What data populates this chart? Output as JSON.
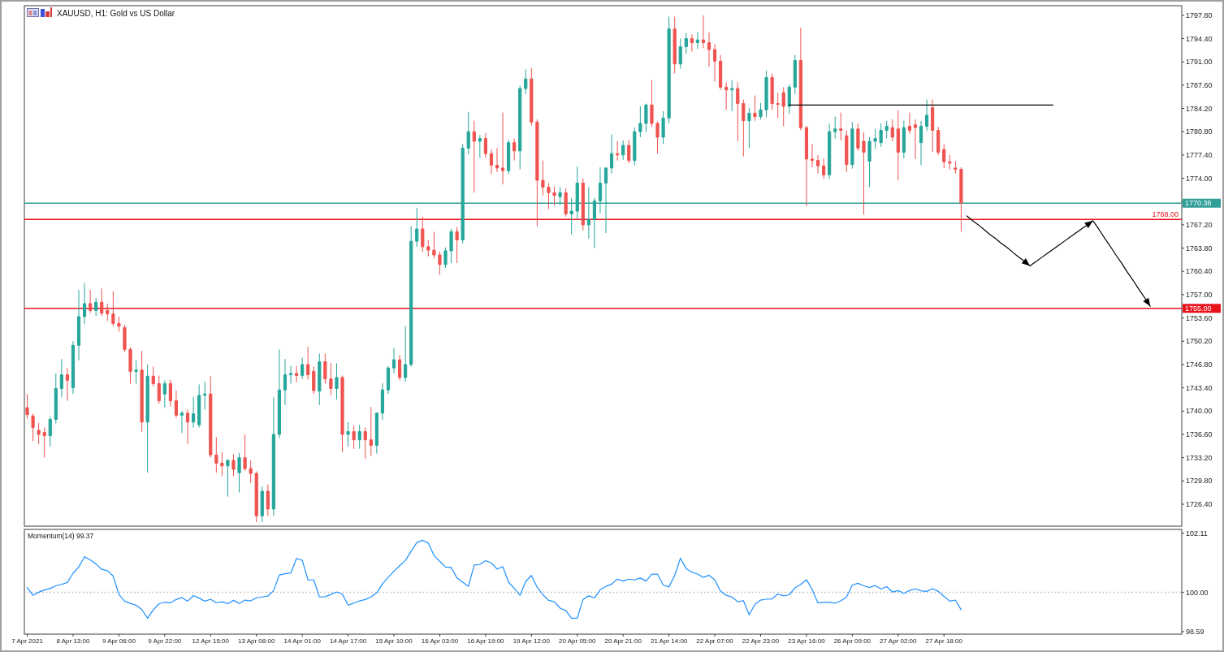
{
  "chart_data": [
    {
      "type": "candlestick",
      "title": "XAUUSD, H1: Gold vs US Dollar",
      "categories": [
        null,
        null,
        null,
        null,
        null,
        null,
        null,
        null,
        null,
        null,
        null,
        null,
        null,
        null,
        null,
        null,
        null,
        null,
        null,
        null,
        null,
        null,
        null,
        null,
        null,
        null,
        null,
        null,
        null,
        null,
        null,
        null,
        null,
        null,
        null,
        null,
        null,
        null,
        null,
        null,
        null,
        null,
        null,
        null,
        null,
        null,
        null,
        null,
        null,
        null,
        null,
        null,
        null,
        null,
        null,
        null,
        null,
        null,
        null,
        null,
        null,
        null,
        null,
        null,
        null,
        null,
        null,
        null,
        null,
        null,
        null,
        null,
        null,
        null,
        null,
        null,
        null,
        null,
        null,
        null,
        null,
        null,
        null,
        null,
        null,
        null,
        null,
        null,
        null,
        null,
        null,
        null,
        null,
        null,
        null,
        null,
        null,
        null,
        null,
        null,
        null,
        null,
        null,
        null,
        null,
        null,
        null,
        null,
        null,
        null,
        null,
        null,
        null,
        null,
        null,
        null,
        null,
        null,
        null,
        null,
        null,
        null,
        null,
        null,
        null,
        null,
        null,
        null,
        null,
        null,
        null,
        null,
        null,
        null,
        null,
        null,
        null,
        null,
        null,
        null,
        null,
        null,
        null,
        null,
        null,
        null,
        null,
        null,
        null,
        null,
        null,
        null,
        null,
        null,
        null,
        null,
        null,
        null,
        null,
        null,
        null,
        null,
        null,
        null,
        null,
        null,
        null,
        null,
        null,
        null,
        null,
        null,
        null,
        null,
        null,
        null,
        null,
        null,
        null,
        null,
        null,
        null,
        null,
        null,
        null,
        null,
        null,
        null,
        null,
        null,
        null,
        null,
        null,
        null,
        null,
        null,
        null,
        null,
        null,
        null,
        null,
        null
      ],
      "ohlc": [
        [
          1740.5,
          1742.5,
          1738.9,
          1739.5
        ],
        [
          1739.3,
          1739.6,
          1735.6,
          1737.6
        ],
        [
          1737.2,
          1738.3,
          1735.2,
          1736.6
        ],
        [
          1736.9,
          1737.6,
          1733.2,
          1736.4
        ],
        [
          1736.4,
          1739.2,
          1734.8,
          1738.8
        ],
        [
          1738.8,
          1745.5,
          1738.2,
          1743.3
        ],
        [
          1743.3,
          1747.6,
          1742.0,
          1745.3
        ],
        [
          1745.3,
          1746.3,
          1741.5,
          1744.5
        ],
        [
          1743.4,
          1750.2,
          1742.5,
          1749.6
        ],
        [
          1749.6,
          1757.7,
          1747.4,
          1753.8
        ],
        [
          1753.8,
          1758.7,
          1752.7,
          1755.7
        ],
        [
          1755.7,
          1757.7,
          1754.3,
          1754.7
        ],
        [
          1754.7,
          1756.5,
          1753.9,
          1755.9
        ],
        [
          1755.9,
          1757.9,
          1753.9,
          1754.3
        ],
        [
          1754.7,
          1755.7,
          1753.2,
          1754.2
        ],
        [
          1754.2,
          1757.5,
          1752.4,
          1752.8
        ],
        [
          1752.8,
          1753.8,
          1751.6,
          1752.4
        ],
        [
          1752.2,
          1752.6,
          1748.6,
          1749.0
        ],
        [
          1749.0,
          1749.3,
          1744.0,
          1745.8
        ],
        [
          1745.8,
          1747.4,
          1744.0,
          1746.0
        ],
        [
          1746.0,
          1748.8,
          1737.0,
          1738.4
        ],
        [
          1738.4,
          1746.8,
          1731.0,
          1745.1
        ],
        [
          1745.1,
          1746.5,
          1743.6,
          1744.0
        ],
        [
          1744.0,
          1745.2,
          1741.1,
          1741.5
        ],
        [
          1742.5,
          1744.5,
          1740.5,
          1744.0
        ],
        [
          1744.0,
          1744.6,
          1740.7,
          1741.5
        ],
        [
          1741.5,
          1743.0,
          1739.0,
          1739.4
        ],
        [
          1739.4,
          1740.0,
          1736.8,
          1739.7
        ],
        [
          1739.7,
          1740.2,
          1735.2,
          1738.4
        ],
        [
          1738.4,
          1742.1,
          1737.6,
          1739.6
        ],
        [
          1738.0,
          1743.9,
          1737.6,
          1742.3
        ],
        [
          1742.3,
          1744.3,
          1740.2,
          1742.5
        ],
        [
          1742.5,
          1745.1,
          1733.2,
          1733.6
        ],
        [
          1733.6,
          1736.2,
          1731.0,
          1732.4
        ],
        [
          1732.4,
          1734.0,
          1730.5,
          1732.0
        ],
        [
          1732.0,
          1733.0,
          1727.5,
          1732.8
        ],
        [
          1732.8,
          1733.7,
          1730.5,
          1731.5
        ],
        [
          1731.0,
          1733.9,
          1728.1,
          1733.2
        ],
        [
          1733.2,
          1736.6,
          1731.3,
          1731.6
        ],
        [
          1731.6,
          1732.8,
          1729.5,
          1730.9
        ],
        [
          1730.9,
          1731.2,
          1723.8,
          1724.7
        ],
        [
          1724.7,
          1729.0,
          1723.8,
          1728.3
        ],
        [
          1728.3,
          1729.3,
          1724.7,
          1725.7
        ],
        [
          1725.7,
          1742.0,
          1724.7,
          1736.6
        ],
        [
          1736.6,
          1749.0,
          1736.0,
          1743.1
        ],
        [
          1743.1,
          1747.6,
          1740.9,
          1745.3
        ],
        [
          1745.3,
          1746.6,
          1744.0,
          1745.5
        ],
        [
          1745.5,
          1746.6,
          1744.2,
          1745.2
        ],
        [
          1745.2,
          1747.8,
          1744.7,
          1746.8
        ],
        [
          1746.8,
          1749.4,
          1744.6,
          1745.3
        ],
        [
          1745.8,
          1746.5,
          1742.5,
          1743.0
        ],
        [
          1742.9,
          1748.4,
          1740.9,
          1747.2
        ],
        [
          1747.2,
          1748.4,
          1744.0,
          1744.7
        ],
        [
          1744.7,
          1747.0,
          1742.3,
          1743.3
        ],
        [
          1743.3,
          1747.0,
          1741.7,
          1744.9
        ],
        [
          1744.9,
          1745.2,
          1734.0,
          1736.6
        ],
        [
          1736.6,
          1738.4,
          1734.8,
          1737.0
        ],
        [
          1737.0,
          1737.9,
          1734.5,
          1735.8
        ],
        [
          1735.8,
          1738.0,
          1734.5,
          1737.0
        ],
        [
          1737.0,
          1737.6,
          1733.0,
          1735.8
        ],
        [
          1735.8,
          1740.6,
          1733.5,
          1735.0
        ],
        [
          1735.0,
          1739.8,
          1733.8,
          1739.7
        ],
        [
          1739.7,
          1744.1,
          1738.7,
          1743.1
        ],
        [
          1743.1,
          1746.6,
          1742.5,
          1746.3
        ],
        [
          1746.3,
          1749.2,
          1745.5,
          1747.5
        ],
        [
          1747.5,
          1748.2,
          1744.5,
          1744.9
        ],
        [
          1744.9,
          1752.4,
          1744.3,
          1746.8
        ],
        [
          1746.8,
          1767.0,
          1746.5,
          1764.8
        ],
        [
          1764.8,
          1769.7,
          1764.0,
          1766.6
        ],
        [
          1766.6,
          1768.4,
          1763.2,
          1764.0
        ],
        [
          1764.0,
          1765.0,
          1762.6,
          1763.5
        ],
        [
          1763.5,
          1766.2,
          1762.3,
          1762.8
        ],
        [
          1762.8,
          1763.3,
          1759.9,
          1761.4
        ],
        [
          1761.4,
          1763.9,
          1760.9,
          1763.4
        ],
        [
          1763.4,
          1766.6,
          1761.6,
          1766.2
        ],
        [
          1766.2,
          1766.9,
          1761.6,
          1765.0
        ],
        [
          1765.0,
          1779.0,
          1764.5,
          1778.4
        ],
        [
          1778.4,
          1783.7,
          1777.5,
          1780.8
        ],
        [
          1780.8,
          1782.4,
          1771.9,
          1779.4
        ],
        [
          1779.4,
          1780.3,
          1777.0,
          1779.8
        ],
        [
          1779.8,
          1780.6,
          1777.0,
          1777.6
        ],
        [
          1777.6,
          1778.2,
          1774.6,
          1775.9
        ],
        [
          1775.9,
          1778.4,
          1774.9,
          1775.5
        ],
        [
          1775.5,
          1783.6,
          1773.1,
          1775.1
        ],
        [
          1775.1,
          1779.6,
          1774.6,
          1779.2
        ],
        [
          1779.2,
          1779.8,
          1776.6,
          1778.0
        ],
        [
          1778.0,
          1787.5,
          1775.3,
          1787.1
        ],
        [
          1787.1,
          1789.9,
          1786.3,
          1788.5
        ],
        [
          1788.5,
          1790.1,
          1781.7,
          1782.2
        ],
        [
          1782.2,
          1782.6,
          1767.0,
          1773.7
        ],
        [
          1773.7,
          1776.6,
          1771.5,
          1772.7
        ],
        [
          1772.7,
          1773.3,
          1769.5,
          1771.9
        ],
        [
          1771.9,
          1772.8,
          1770.0,
          1771.5
        ],
        [
          1771.3,
          1772.7,
          1770.1,
          1771.9
        ],
        [
          1771.9,
          1772.5,
          1768.4,
          1768.8
        ],
        [
          1768.8,
          1771.1,
          1765.8,
          1769.2
        ],
        [
          1769.2,
          1775.7,
          1768.0,
          1773.3
        ],
        [
          1773.3,
          1774.0,
          1766.4,
          1767.2
        ],
        [
          1767.2,
          1772.7,
          1765.2,
          1768.0
        ],
        [
          1768.0,
          1771.1,
          1763.8,
          1770.7
        ],
        [
          1770.7,
          1775.6,
          1768.9,
          1773.3
        ],
        [
          1773.3,
          1775.6,
          1766.0,
          1775.5
        ],
        [
          1775.5,
          1780.4,
          1774.7,
          1777.6
        ],
        [
          1777.6,
          1779.4,
          1776.6,
          1777.4
        ],
        [
          1777.4,
          1779.5,
          1776.7,
          1778.8
        ],
        [
          1778.8,
          1779.6,
          1776.2,
          1776.6
        ],
        [
          1776.6,
          1781.4,
          1775.9,
          1780.8
        ],
        [
          1780.8,
          1784.5,
          1780.0,
          1782.0
        ],
        [
          1782.0,
          1784.9,
          1780.7,
          1784.7
        ],
        [
          1784.7,
          1788.3,
          1781.5,
          1782.0
        ],
        [
          1782.0,
          1782.3,
          1777.6,
          1780.0
        ],
        [
          1780.0,
          1783.8,
          1779.0,
          1782.8
        ],
        [
          1782.8,
          1797.6,
          1782.0,
          1795.8
        ],
        [
          1795.8,
          1797.6,
          1789.3,
          1790.7
        ],
        [
          1790.7,
          1794.4,
          1790.0,
          1793.2
        ],
        [
          1793.2,
          1795.2,
          1792.2,
          1794.4
        ],
        [
          1794.4,
          1795.0,
          1792.5,
          1793.8
        ],
        [
          1793.8,
          1795.4,
          1792.9,
          1794.2
        ],
        [
          1794.2,
          1797.8,
          1793.0,
          1793.8
        ],
        [
          1793.8,
          1795.3,
          1790.3,
          1792.8
        ],
        [
          1792.8,
          1793.6,
          1788.1,
          1791.1
        ],
        [
          1791.1,
          1792.0,
          1786.9,
          1787.3
        ],
        [
          1787.3,
          1788.0,
          1784.0,
          1786.9
        ],
        [
          1786.9,
          1788.3,
          1783.8,
          1787.1
        ],
        [
          1787.1,
          1788.0,
          1779.4,
          1784.9
        ],
        [
          1784.9,
          1785.5,
          1777.2,
          1782.4
        ],
        [
          1782.4,
          1784.3,
          1778.4,
          1783.5
        ],
        [
          1783.5,
          1786.1,
          1782.4,
          1783.0
        ],
        [
          1783.0,
          1785.0,
          1782.6,
          1784.0
        ],
        [
          1784.0,
          1789.7,
          1782.9,
          1788.7
        ],
        [
          1788.7,
          1789.3,
          1784.0,
          1784.9
        ],
        [
          1784.9,
          1786.5,
          1782.8,
          1784.8
        ],
        [
          1786.5,
          1787.3,
          1781.6,
          1784.5
        ],
        [
          1784.5,
          1787.7,
          1783.4,
          1787.3
        ],
        [
          1787.3,
          1792.0,
          1786.3,
          1791.2
        ],
        [
          1791.2,
          1796.0,
          1781.0,
          1781.4
        ],
        [
          1781.4,
          1781.6,
          1769.9,
          1776.8
        ],
        [
          1776.8,
          1779.0,
          1775.6,
          1776.6
        ],
        [
          1776.6,
          1777.4,
          1774.7,
          1775.8
        ],
        [
          1775.8,
          1776.9,
          1773.9,
          1774.5
        ],
        [
          1774.5,
          1782.0,
          1773.9,
          1780.8
        ],
        [
          1780.8,
          1783.0,
          1779.8,
          1781.2
        ],
        [
          1781.2,
          1783.6,
          1779.5,
          1781.0
        ],
        [
          1780.2,
          1781.0,
          1774.9,
          1776.0
        ],
        [
          1776.0,
          1782.2,
          1775.4,
          1781.2
        ],
        [
          1781.2,
          1782.0,
          1778.0,
          1778.4
        ],
        [
          1779.4,
          1780.7,
          1768.7,
          1777.8
        ],
        [
          1776.5,
          1780.0,
          1772.7,
          1779.4
        ],
        [
          1779.4,
          1781.2,
          1778.3,
          1779.8
        ],
        [
          1779.2,
          1782.0,
          1778.6,
          1781.0
        ],
        [
          1781.0,
          1782.4,
          1779.8,
          1781.6
        ],
        [
          1781.4,
          1782.6,
          1779.4,
          1780.0
        ],
        [
          1781.2,
          1783.9,
          1773.7,
          1777.8
        ],
        [
          1777.8,
          1782.4,
          1776.9,
          1781.4
        ],
        [
          1781.6,
          1783.6,
          1780.5,
          1781.0
        ],
        [
          1781.8,
          1782.6,
          1776.8,
          1781.4
        ],
        [
          1779.2,
          1782.4,
          1775.9,
          1781.6
        ],
        [
          1781.6,
          1785.5,
          1780.9,
          1783.2
        ],
        [
          1784.3,
          1785.5,
          1777.8,
          1781.0
        ],
        [
          1781.0,
          1781.5,
          1777.4,
          1777.8
        ],
        [
          1778.2,
          1779.0,
          1775.5,
          1776.4
        ],
        [
          1776.4,
          1777.4,
          1775.3,
          1776.2
        ],
        [
          1775.5,
          1776.5,
          1774.7,
          1775.3
        ],
        [
          1775.3,
          1775.6,
          1766.2,
          1770.4
        ],
        null,
        null,
        null,
        null,
        null,
        null,
        null,
        null,
        null,
        null,
        null,
        null,
        null,
        null,
        null,
        null,
        null,
        null,
        null,
        null,
        null,
        null,
        null,
        null,
        null,
        null,
        null,
        null,
        null,
        null,
        null,
        null,
        null,
        null,
        null,
        null,
        null,
        null
      ],
      "colors": [
        "#ef5350",
        "#ef5350",
        "#ef5350",
        "#ef5350",
        "#26a69a",
        "#26a69a",
        "#26a69a",
        "#ef5350",
        "#26a69a",
        "#26a69a",
        "#26a69a",
        "#ef5350",
        "#26a69a",
        "#ef5350",
        "#ef5350",
        "#ef5350",
        "#ef5350",
        "#ef5350",
        "#ef5350",
        "#26a69a",
        "#ef5350",
        "#26a69a",
        "#ef5350",
        "#ef5350",
        "#26a69a",
        "#ef5350",
        "#ef5350",
        "#26a69a",
        "#ef5350",
        "#26a69a",
        "#26a69a",
        "#26a69a",
        "#ef5350",
        "#ef5350",
        "#ef5350",
        "#26a69a",
        "#ef5350",
        "#26a69a",
        "#ef5350",
        "#ef5350",
        "#ef5350",
        "#26a69a",
        "#ef5350",
        "#26a69a",
        "#26a69a",
        "#26a69a",
        "#26a69a",
        "#ef5350",
        "#26a69a",
        "#ef5350",
        "#ef5350",
        "#26a69a",
        "#ef5350",
        "#ef5350",
        "#26a69a",
        "#ef5350",
        "#26a69a",
        "#ef5350",
        "#26a69a",
        "#ef5350",
        "#ef5350",
        "#26a69a",
        "#26a69a",
        "#26a69a",
        "#26a69a",
        "#ef5350",
        "#26a69a",
        "#26a69a",
        "#26a69a",
        "#ef5350",
        "#ef5350",
        "#ef5350",
        "#ef5350",
        "#26a69a",
        "#26a69a",
        "#ef5350",
        "#26a69a",
        "#26a69a",
        "#ef5350",
        "#26a69a",
        "#ef5350",
        "#ef5350",
        "#ef5350",
        "#ef5350",
        "#26a69a",
        "#ef5350",
        "#26a69a",
        "#26a69a",
        "#ef5350",
        "#ef5350",
        "#ef5350",
        "#ef5350",
        "#ef5350",
        "#26a69a",
        "#ef5350",
        "#26a69a",
        "#26a69a",
        "#ef5350",
        "#26a69a",
        "#26a69a",
        "#26a69a",
        "#26a69a",
        "#26a69a",
        "#ef5350",
        "#26a69a",
        "#ef5350",
        "#26a69a",
        "#26a69a",
        "#26a69a",
        "#ef5350",
        "#ef5350",
        "#26a69a",
        "#26a69a",
        "#ef5350",
        "#26a69a",
        "#26a69a",
        "#ef5350",
        "#26a69a",
        "#ef5350",
        "#ef5350",
        "#ef5350",
        "#ef5350",
        "#ef5350",
        "#26a69a",
        "#ef5350",
        "#ef5350",
        "#26a69a",
        "#ef5350",
        "#26a69a",
        "#26a69a",
        "#ef5350",
        "#ef5350",
        "#ef5350",
        "#26a69a",
        "#26a69a",
        "#ef5350",
        "#ef5350",
        "#ef5350",
        "#ef5350",
        "#ef5350",
        "#26a69a",
        "#26a69a",
        "#ef5350",
        "#ef5350",
        "#26a69a",
        "#ef5350",
        "#ef5350",
        "#26a69a",
        "#26a69a",
        "#26a69a",
        "#26a69a",
        "#ef5350",
        "#ef5350",
        "#26a69a",
        "#ef5350",
        "#ef5350",
        "#26a69a",
        "#26a69a",
        "#ef5350",
        "#ef5350",
        "#ef5350",
        "#ef5350",
        "#ef5350",
        "#ef5350",
        null,
        null,
        null,
        null,
        null,
        null,
        null,
        null,
        null,
        null,
        null,
        null,
        null,
        null,
        null,
        null,
        null,
        null,
        null,
        null,
        null,
        null,
        null,
        null,
        null,
        null,
        null,
        null,
        null,
        null,
        null,
        null,
        null,
        null,
        null,
        null,
        null,
        null
      ],
      "series": [
        {
          "type": "line",
          "color": "#000000",
          "values": [
            null,
            null,
            null,
            null,
            null,
            null,
            null,
            null,
            null,
            null,
            null,
            null,
            null,
            null,
            null,
            null,
            null,
            null,
            null,
            null,
            null,
            null,
            null,
            null,
            null,
            null,
            null,
            null,
            null,
            null,
            null,
            null,
            null,
            null,
            null,
            null,
            null,
            null,
            null,
            null,
            null,
            null,
            null,
            null,
            null,
            null,
            null,
            null,
            null,
            null,
            null,
            null,
            null,
            null,
            null,
            null,
            null,
            null,
            null,
            null,
            null,
            null,
            null,
            null,
            null,
            null,
            null,
            null,
            null,
            null,
            null,
            null,
            null,
            null,
            null,
            null,
            null,
            null,
            null,
            null,
            null,
            null,
            null,
            null,
            null,
            null,
            null,
            null,
            null,
            null,
            null,
            null,
            null,
            null,
            null,
            null,
            null,
            null,
            null,
            null,
            null,
            null,
            null,
            null,
            null,
            null,
            null,
            null,
            null,
            null,
            null,
            null,
            null,
            null,
            null,
            null,
            null,
            null,
            null,
            null,
            null,
            null,
            null,
            null,
            null,
            null,
            null,
            null,
            null,
            null,
            null,
            null,
            null,
            1784.7,
            1784.7,
            1784.7,
            1784.7,
            1784.7,
            1784.7,
            1784.7,
            1784.7,
            1784.7,
            1784.7,
            1784.7,
            1784.7,
            1784.7,
            1784.7,
            1784.7,
            1784.7,
            1784.7,
            1784.7,
            1784.7,
            1784.7,
            1784.7,
            1784.7,
            1784.7,
            1784.7,
            1784.7,
            1784.7,
            1784.7,
            1784.7,
            1784.7,
            1784.7,
            1784.7,
            1784.7,
            1784.7,
            1784.7,
            1784.7,
            1784.7,
            1784.7,
            1784.7,
            1784.7,
            1784.7,
            1784.7,
            1784.7,
            1784.7,
            1784.7,
            1784.7,
            1784.7,
            1784.7,
            null,
            null,
            null,
            null,
            null,
            null,
            null,
            null,
            null,
            null,
            null,
            null,
            null,
            null,
            null,
            null,
            null,
            null,
            null,
            null,
            null,
            null
          ]
        },
        {
          "type": "line",
          "color": "#000000",
          "values": [
            null,
            null,
            null,
            null,
            null,
            null,
            null,
            null,
            null,
            null,
            null,
            null,
            null,
            null,
            null,
            null,
            null,
            null,
            null,
            null,
            null,
            null,
            null,
            null,
            null,
            null,
            null,
            null,
            null,
            null,
            null,
            null,
            null,
            null,
            null,
            null,
            null,
            null,
            null,
            null,
            null,
            null,
            null,
            null,
            null,
            null,
            null,
            null,
            null,
            null,
            null,
            null,
            null,
            null,
            null,
            null,
            null,
            null,
            null,
            null,
            null,
            null,
            null,
            null,
            null,
            null,
            null,
            null,
            null,
            null,
            null,
            null,
            null,
            null,
            null,
            null,
            null,
            null,
            null,
            null,
            null,
            null,
            null,
            null,
            null,
            null,
            null,
            null,
            null,
            null,
            null,
            null,
            null,
            null,
            null,
            null,
            null,
            null,
            null,
            null,
            null,
            null,
            null,
            null,
            null,
            null,
            null,
            null,
            null,
            null,
            null,
            null,
            null,
            null,
            null,
            null,
            null,
            null,
            null,
            null,
            null,
            null,
            null,
            null,
            null,
            null,
            null,
            null,
            null,
            null,
            null,
            null,
            null,
            null,
            null,
            null,
            null,
            null,
            null,
            null,
            null,
            null,
            null,
            null,
            null,
            null,
            null,
            null,
            null,
            null,
            null,
            null,
            null,
            null,
            null,
            null,
            null,
            null,
            null,
            null,
            null,
            null,
            null,
            null,
            1768.5,
            1767.8,
            1767.2,
            1766.5,
            1765.8,
            1765.2,
            1764.5,
            1763.9,
            1763.2,
            1762.5,
            1761.9,
            1761.2,
            1761.8,
            1762.4,
            1763.0,
            1763.6,
            1764.2,
            1764.8,
            1765.4,
            1766.0,
            1766.6,
            1767.2,
            1767.8,
            1766.6,
            1765.3,
            1764.1,
            1762.8,
            1761.6,
            1760.3,
            1759.1,
            1757.8,
            1756.6,
            1755.3,
            null,
            null,
            null,
            null,
            null
          ]
        }
      ],
      "ylim": [
        1723.2,
        1799.2
      ],
      "yticks": [
        {
          "value": 1726.4,
          "label": "1726.40"
        },
        {
          "value": 1729.8,
          "label": "1729.80"
        },
        {
          "value": 1733.2,
          "label": "1733.20"
        },
        {
          "value": 1736.6,
          "label": "1736.60"
        },
        {
          "value": 1740,
          "label": "1740.00"
        },
        {
          "value": 1743.4,
          "label": "1743.40"
        },
        {
          "value": 1746.8,
          "label": "1746.80"
        },
        {
          "value": 1750.2,
          "label": "1750.20"
        },
        {
          "value": 1753.6,
          "label": "1753.60"
        },
        {
          "value": 1757,
          "label": "1757.00"
        },
        {
          "value": 1760.4,
          "label": "1760.40"
        },
        {
          "value": 1763.8,
          "label": "1763.80"
        },
        {
          "value": 1767.2,
          "label": "1767.20"
        },
        {
          "value": 1770.6,
          "label": null
        },
        {
          "value": 1774,
          "label": "1774.00"
        },
        {
          "value": 1777.4,
          "label": "1777.40"
        },
        {
          "value": 1780.8,
          "label": "1780.80"
        },
        {
          "value": 1784.2,
          "label": "1784.20"
        },
        {
          "value": 1787.6,
          "label": "1787.60"
        },
        {
          "value": 1791,
          "label": "1791.00"
        },
        {
          "value": 1794.4,
          "label": "1794.40"
        },
        {
          "value": 1797.8,
          "label": "1797.80"
        }
      ],
      "tick_labels": "y",
      "ref_lines": [
        {
          "axis": "y",
          "value": 1770.36,
          "label": "1770.36",
          "color": "#2e9e96"
        },
        {
          "axis": "y",
          "value": 1768,
          "label": "1768.00",
          "color": "#e8121c"
        },
        {
          "axis": "y",
          "value": 1755,
          "label": "1755.00",
          "color": "#e8121c"
        }
      ]
    },
    {
      "type": "line",
      "title": "Momentum(14) 99.37",
      "color": "#1e90ff",
      "categories": [
        "7 Apr 2021",
        null,
        null,
        null,
        null,
        null,
        null,
        null,
        "8 Apr 13:00",
        null,
        null,
        null,
        null,
        null,
        null,
        null,
        "9 Apr 06:00",
        null,
        null,
        null,
        null,
        null,
        null,
        null,
        "9 Apr 22:00",
        null,
        null,
        null,
        null,
        null,
        null,
        null,
        "12 Apr 15:00",
        null,
        null,
        null,
        null,
        null,
        null,
        null,
        "13 Apr 08:00",
        null,
        null,
        null,
        null,
        null,
        null,
        null,
        "14 Apr 01:00",
        null,
        null,
        null,
        null,
        null,
        null,
        null,
        "14 Apr 17:00",
        null,
        null,
        null,
        null,
        null,
        null,
        null,
        "15 Apr 10:00",
        null,
        null,
        null,
        null,
        null,
        null,
        null,
        "16 Apr 03:00",
        null,
        null,
        null,
        null,
        null,
        null,
        null,
        "16 Apr 19:00",
        null,
        null,
        null,
        null,
        null,
        null,
        null,
        "19 Apr 12:00",
        null,
        null,
        null,
        null,
        null,
        null,
        null,
        "20 Apr 05:00",
        null,
        null,
        null,
        null,
        null,
        null,
        null,
        "20 Apr 21:00",
        null,
        null,
        null,
        null,
        null,
        null,
        null,
        "21 Apr 14:00",
        null,
        null,
        null,
        null,
        null,
        null,
        null,
        "22 Apr 07:00",
        null,
        null,
        null,
        null,
        null,
        null,
        null,
        "22 Apr 23:00",
        null,
        null,
        null,
        null,
        null,
        null,
        null,
        "23 Apr 16:00",
        null,
        null,
        null,
        null,
        null,
        null,
        null,
        "26 Apr 09:00",
        null,
        null,
        null,
        null,
        null,
        null,
        null,
        "27 Apr 02:00",
        null,
        null,
        null,
        null,
        null,
        null,
        null,
        "27 Apr 18:00",
        null,
        null,
        null,
        null,
        null,
        null,
        null,
        null,
        null,
        null,
        null,
        null,
        null,
        null,
        null,
        null,
        null,
        null,
        null,
        null,
        null,
        null,
        null,
        null,
        null,
        null,
        null,
        null,
        null,
        null,
        null,
        null,
        null,
        null,
        null,
        null,
        null,
        null,
        null,
        null,
        null
      ],
      "values": [
        100.17,
        99.89,
        100.0,
        100.08,
        100.14,
        100.23,
        100.28,
        100.35,
        100.68,
        100.91,
        101.27,
        101.16,
        101.01,
        100.82,
        100.77,
        100.58,
        99.92,
        99.68,
        99.6,
        99.54,
        99.38,
        99.07,
        99.37,
        99.59,
        99.64,
        99.62,
        99.74,
        99.81,
        99.68,
        99.88,
        99.79,
        99.68,
        99.75,
        99.62,
        99.66,
        99.59,
        99.71,
        99.6,
        99.72,
        99.69,
        99.8,
        99.83,
        99.86,
        100.06,
        100.62,
        100.66,
        100.69,
        101.21,
        101.14,
        100.44,
        100.44,
        99.83,
        99.84,
        99.92,
        100.01,
        99.93,
        99.54,
        99.61,
        99.69,
        99.74,
        99.83,
        99.98,
        100.3,
        100.54,
        100.75,
        100.95,
        101.14,
        101.47,
        101.78,
        101.86,
        101.76,
        101.31,
        101.11,
        100.9,
        100.89,
        100.51,
        100.36,
        100.21,
        100.97,
        101.0,
        101.13,
        101.05,
        100.83,
        100.92,
        100.36,
        100.14,
        99.89,
        100.39,
        100.6,
        100.18,
        99.91,
        99.71,
        99.66,
        99.43,
        99.34,
        99.07,
        99.08,
        99.74,
        99.87,
        99.8,
        100.09,
        100.21,
        100.29,
        100.47,
        100.4,
        100.47,
        100.44,
        100.51,
        100.4,
        100.65,
        100.65,
        100.26,
        100.19,
        100.6,
        101.22,
        100.85,
        100.72,
        100.65,
        100.53,
        100.61,
        100.44,
        100.04,
        99.89,
        99.83,
        99.66,
        99.7,
        99.19,
        99.57,
        99.72,
        99.75,
        99.76,
        99.94,
        99.87,
        99.91,
        100.16,
        100.28,
        100.45,
        100.09,
        99.62,
        99.64,
        99.64,
        99.61,
        99.69,
        99.83,
        100.26,
        100.32,
        100.23,
        100.17,
        100.24,
        100.12,
        100.2,
        100.01,
        100.06,
        99.96,
        100.06,
        100.12,
        100.05,
        100.03,
        100.13,
        100.03,
        99.85,
        99.68,
        99.72,
        99.37,
        null,
        null,
        null,
        null,
        null,
        null,
        null,
        null,
        null,
        null,
        null,
        null,
        null,
        null,
        null,
        null,
        null,
        null,
        null,
        null,
        null,
        null,
        null,
        null,
        null,
        null,
        null,
        null,
        null,
        null,
        null,
        null,
        null,
        null,
        null,
        null,
        null,
        null
      ],
      "ylim": [
        98.5,
        102.25
      ],
      "yticks": [
        {
          "value": 98.59,
          "label": "98.59"
        },
        {
          "value": 100,
          "label": "100.00"
        },
        {
          "value": 102.11,
          "label": "102.11"
        }
      ],
      "ref_lines": [
        {
          "axis": "y",
          "value": 100,
          "color": "#b8b8b8",
          "line_style": "dotted"
        }
      ]
    }
  ]
}
